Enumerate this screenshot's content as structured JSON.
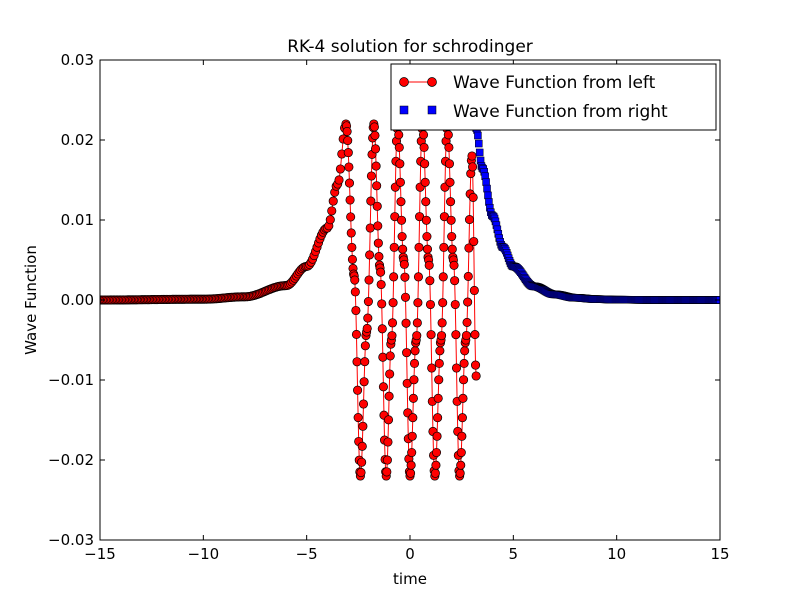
{
  "chart_data": {
    "type": "line",
    "title": "RK-4 solution for schrodinger",
    "xlabel": "time",
    "ylabel": "Wave Function",
    "xlim": [
      -15,
      15
    ],
    "ylim": [
      -0.03,
      0.03
    ],
    "xticks": [
      -15,
      -10,
      -5,
      0,
      5,
      10,
      15
    ],
    "xtick_labels": [
      "−15",
      "−10",
      "−5",
      "0",
      "5",
      "10",
      "15"
    ],
    "yticks": [
      -0.03,
      -0.02,
      -0.01,
      0.0,
      0.01,
      0.02,
      0.03
    ],
    "ytick_labels": [
      "−0.03",
      "−0.02",
      "−0.01",
      "0.00",
      "0.01",
      "0.02",
      "0.03"
    ],
    "grid": false,
    "legend_position": "top-right",
    "series": [
      {
        "name": "Wave Function from left",
        "color": "#ff0000",
        "marker": "circle",
        "line": true,
        "x_range": [
          -15,
          3.2
        ],
        "description_points": {
          "x": [
            -15,
            -10,
            -8,
            -6,
            -5,
            -4,
            -3.5,
            -3.1,
            -2.7,
            -2.4,
            -2.1,
            -1.75,
            -1.45,
            -1.15,
            -0.9,
            -0.6,
            -0.3,
            0.0,
            0.3,
            0.6,
            0.9,
            1.2,
            1.5,
            1.8,
            2.1,
            2.4,
            2.7,
            3.0,
            3.2
          ],
          "y": [
            0.0,
            0.0001,
            0.0004,
            0.0018,
            0.0042,
            0.009,
            0.0145,
            0.022,
            0.003,
            -0.022,
            -0.004,
            0.022,
            0.004,
            -0.022,
            -0.005,
            0.022,
            0.005,
            -0.022,
            -0.005,
            0.022,
            0.005,
            -0.022,
            -0.005,
            0.022,
            0.005,
            -0.022,
            -0.005,
            0.018,
            -0.0095
          ]
        }
      },
      {
        "name": "Wave Function from right",
        "color": "#0000ff",
        "marker": "square",
        "line": false,
        "x_range": [
          3.2,
          15
        ],
        "description_points": {
          "x": [
            3.2,
            3.5,
            4,
            4.5,
            5,
            6,
            7,
            8,
            9,
            10,
            12,
            15
          ],
          "y": [
            0.0215,
            0.0165,
            0.0105,
            0.0066,
            0.0042,
            0.0017,
            0.0007,
            0.00028,
            0.00011,
            4e-05,
            0.0,
            0.0
          ]
        }
      }
    ]
  }
}
